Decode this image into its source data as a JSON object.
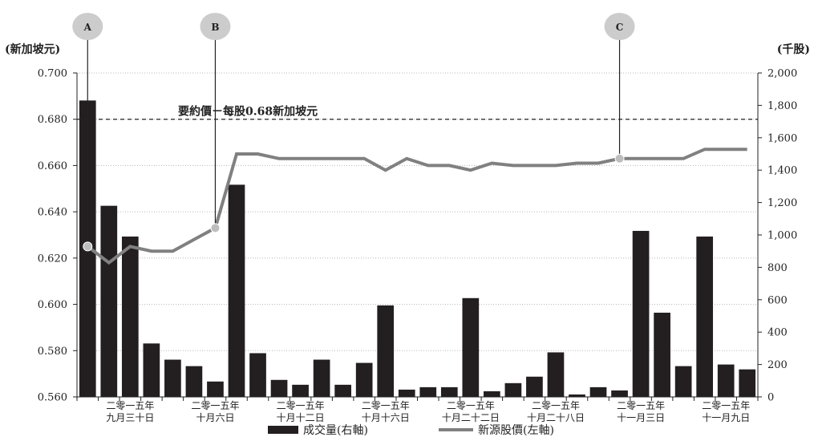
{
  "chart_data": {
    "type": "bar+line",
    "left_axis": {
      "label": "(新加坡元)",
      "min": 0.56,
      "max": 0.7,
      "ticks": [
        "0.560",
        "0.580",
        "0.600",
        "0.620",
        "0.640",
        "0.660",
        "0.680",
        "0.700"
      ]
    },
    "right_axis": {
      "label": "(千股)",
      "min": 0,
      "max": 2000,
      "ticks": [
        "0",
        "200",
        "400",
        "600",
        "800",
        "1,000",
        "1,200",
        "1,400",
        "1,600",
        "1,800",
        "2,000"
      ]
    },
    "x_labels": [
      {
        "index": 2,
        "line1": "二零一五年",
        "line2": "九月三十日"
      },
      {
        "index": 6,
        "line1": "二零一五年",
        "line2": "十月六日"
      },
      {
        "index": 10,
        "line1": "二零一五年",
        "line2": "十月十二日"
      },
      {
        "index": 14,
        "line1": "二零一五年",
        "line2": "十月十六日"
      },
      {
        "index": 18,
        "line1": "二零一五年",
        "line2": "十月二十二日"
      },
      {
        "index": 22,
        "line1": "二零一五年",
        "line2": "十月二十八日"
      },
      {
        "index": 26,
        "line1": "二零一五年",
        "line2": "十一月三日"
      },
      {
        "index": 30,
        "line1": "二零一五年",
        "line2": "十一月九日"
      }
    ],
    "series": [
      {
        "name": "成交量(右軸)",
        "type": "bar",
        "axis": "right",
        "color": "#231f20",
        "values": [
          1830,
          1180,
          990,
          330,
          230,
          190,
          95,
          1310,
          270,
          105,
          75,
          230,
          75,
          210,
          565,
          45,
          60,
          60,
          610,
          35,
          85,
          125,
          275,
          15,
          60,
          40,
          1025,
          520,
          190,
          990,
          200,
          170
        ]
      },
      {
        "name": "新源股價(左軸)",
        "type": "line",
        "axis": "left",
        "color": "#808080",
        "values": [
          0.625,
          0.618,
          0.625,
          0.623,
          0.623,
          0.628,
          0.633,
          0.665,
          0.665,
          0.663,
          0.663,
          0.663,
          0.663,
          0.663,
          0.658,
          0.663,
          0.66,
          0.66,
          0.658,
          0.661,
          0.66,
          0.66,
          0.66,
          0.661,
          0.661,
          0.663,
          0.663,
          0.663,
          0.663,
          0.667,
          0.667,
          0.667
        ]
      }
    ],
    "reference_line": {
      "value": 0.68,
      "label": "要約價－每股0.68新加坡元"
    },
    "markers": [
      {
        "label": "A",
        "index": 0
      },
      {
        "label": "B",
        "index": 6
      },
      {
        "label": "C",
        "index": 25
      }
    ],
    "grid": "horizontal dotted",
    "legend": {
      "position": "bottom",
      "items": [
        "成交量(右軸)",
        "新源股價(左軸)"
      ]
    }
  },
  "colors": {
    "bar": "#231f20",
    "line": "#808080",
    "marker_bubble": "#cccccc",
    "marker_dot": "#bdbdbd"
  }
}
